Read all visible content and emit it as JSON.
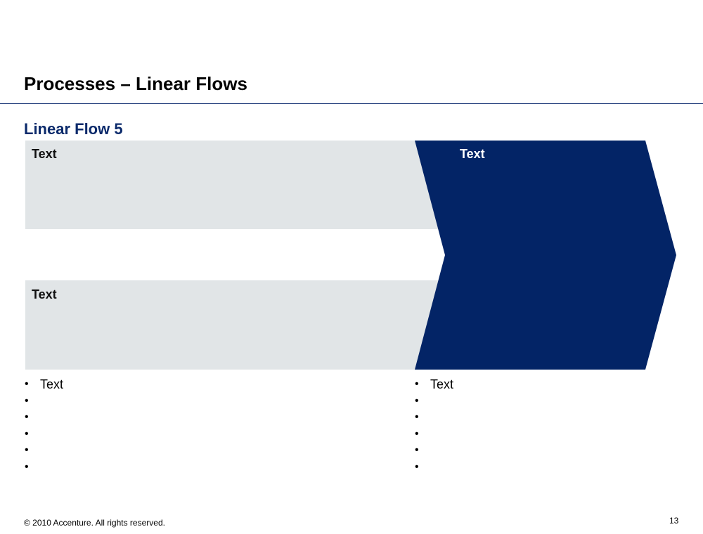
{
  "slide": {
    "title": "Processes – Linear Flows",
    "subtitle": "Linear Flow 5"
  },
  "diagram": {
    "top_box_label": "Text",
    "bottom_box_label": "Text",
    "chevron_label": "Text",
    "colors": {
      "gray_box": "#e1e5e7",
      "chevron": "#032466",
      "title_blue": "#0b2a6b"
    }
  },
  "bullets_left": [
    "Text",
    "",
    "",
    "",
    "",
    ""
  ],
  "bullets_right": [
    "Text",
    "",
    "",
    "",
    "",
    ""
  ],
  "footer": {
    "copyright": "© 2010 Accenture. All rights reserved.",
    "page_number": "13"
  }
}
